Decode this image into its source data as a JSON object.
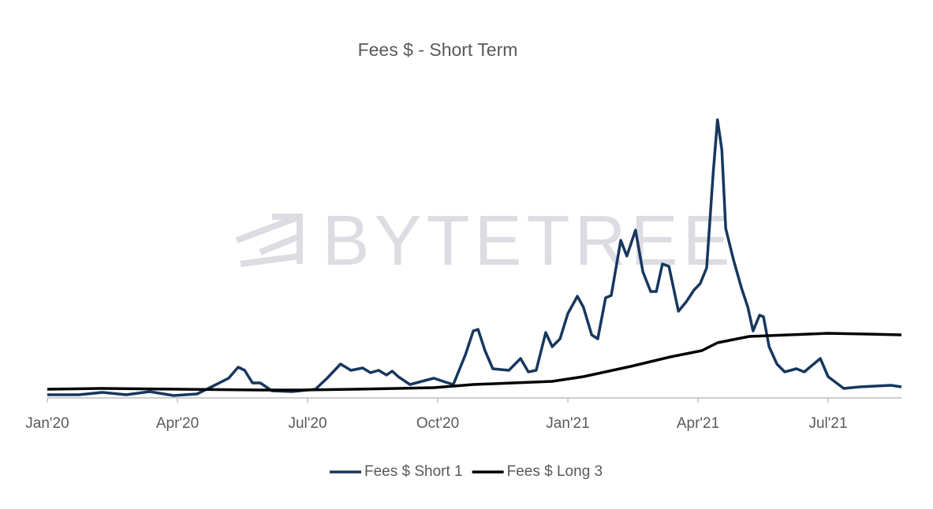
{
  "chart_data": {
    "type": "line",
    "title": "Fees $ - Short Term",
    "watermark": "BYTETREE",
    "xlim": [
      0,
      19.7
    ],
    "ylim": [
      0,
      360
    ],
    "xticks": [
      {
        "value": 0,
        "label": "Jan'20"
      },
      {
        "value": 3,
        "label": "Apr'20"
      },
      {
        "value": 6,
        "label": "Jul'20"
      },
      {
        "value": 9,
        "label": "Oct'20"
      },
      {
        "value": 12,
        "label": "Jan'21"
      },
      {
        "value": 15,
        "label": "Apr'21"
      },
      {
        "value": 18,
        "label": "Jul'21"
      }
    ],
    "legend": "bottom",
    "series": [
      {
        "name": "Fees $ Short 1",
        "color": "#17375e",
        "x": [
          0,
          0.73,
          1.27,
          1.82,
          2.36,
          2.91,
          3.45,
          3.82,
          4.18,
          4.4,
          4.55,
          4.73,
          4.91,
          5.18,
          5.64,
          6.18,
          6.45,
          6.76,
          7,
          7.27,
          7.45,
          7.64,
          7.82,
          7.95,
          8.09,
          8.36,
          8.91,
          9.18,
          9.36,
          9.64,
          9.82,
          9.93,
          10.09,
          10.27,
          10.64,
          10.91,
          11.09,
          11.27,
          11.49,
          11.64,
          11.82,
          12,
          12.22,
          12.36,
          12.55,
          12.69,
          12.87,
          13,
          13.22,
          13.36,
          13.56,
          13.73,
          13.91,
          14.04,
          14.18,
          14.33,
          14.55,
          14.73,
          14.91,
          15.05,
          15.2,
          15.35,
          15.45,
          15.55,
          15.64,
          15.82,
          16,
          16.15,
          16.27,
          16.42,
          16.51,
          16.64,
          16.82,
          17,
          17.27,
          17.45,
          17.82,
          18,
          18.36,
          18.73,
          19.09,
          19.45,
          19.69
        ],
        "values": [
          4,
          4,
          7,
          4,
          8,
          3,
          5,
          15,
          25,
          39,
          35,
          19,
          19,
          9,
          8,
          11,
          25,
          43,
          35,
          38,
          32,
          35,
          29,
          34,
          27,
          17,
          25,
          20,
          17,
          55,
          85,
          87,
          60,
          37,
          35,
          50,
          33,
          35,
          83,
          65,
          75,
          107,
          129,
          115,
          80,
          75,
          127,
          130,
          200,
          180,
          213,
          160,
          135,
          135,
          170,
          167,
          110,
          122,
          137,
          145,
          165,
          285,
          353,
          315,
          215,
          175,
          140,
          115,
          85,
          105,
          103,
          65,
          43,
          33,
          37,
          33,
          50,
          27,
          12,
          14,
          15,
          16,
          14
        ]
      },
      {
        "name": "Fees $ Long 3",
        "color": "#000000",
        "x": [
          0,
          1.27,
          3.09,
          4.91,
          5.82,
          7.09,
          8.91,
          9.82,
          11.64,
          12.36,
          13.45,
          14.36,
          15.09,
          15.45,
          16.18,
          17.09,
          18,
          18.91,
          19.69
        ],
        "values": [
          11,
          12,
          11,
          10,
          10,
          11,
          13,
          17,
          21,
          27,
          40,
          52,
          60,
          70,
          78,
          80,
          82,
          81,
          80
        ]
      }
    ]
  }
}
